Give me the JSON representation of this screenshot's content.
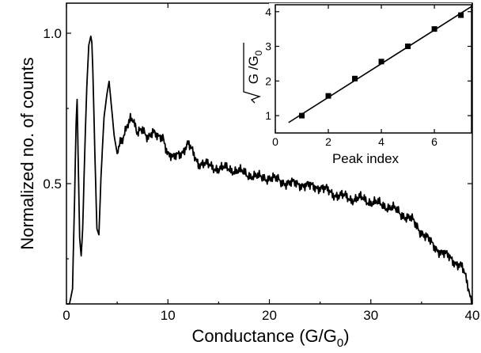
{
  "chart_data": [
    {
      "type": "line",
      "xlabel": "Conductance (G/G",
      "xlabel_sub": "0",
      "xlabel_close": ")",
      "ylabel": "Normalized no. of counts",
      "xlim": [
        0,
        40
      ],
      "ylim": [
        0.1,
        1.1
      ],
      "xticks": [
        0,
        10,
        20,
        30,
        40
      ],
      "xtick_labels": [
        "0",
        "10",
        "20",
        "30",
        "40"
      ],
      "yticks": [
        0.5,
        1.0
      ],
      "ytick_labels": [
        "0.5",
        "1.0"
      ],
      "grid": false,
      "series": [
        {
          "x": [
            0.0,
            0.3,
            0.6,
            0.8,
            0.95,
            1.05,
            1.15,
            1.3,
            1.45,
            1.6,
            1.8,
            2.0,
            2.2,
            2.4,
            2.5,
            2.6,
            2.8,
            3.0,
            3.2,
            3.4,
            3.7,
            4.0,
            4.2,
            4.4,
            4.7,
            5.0,
            5.3,
            5.6,
            6.0,
            6.3,
            6.6,
            7.0,
            7.5,
            8.0,
            8.5,
            9.0,
            9.5,
            10.0,
            10.5,
            11.0,
            11.5,
            12.0,
            12.5,
            13.0,
            14.0,
            15.0,
            16.0,
            17.0,
            18.0,
            19.0,
            20.0,
            21.0,
            22.0,
            23.0,
            24.0,
            25.0,
            26.0,
            27.0,
            28.0,
            29.0,
            30.0,
            31.0,
            32.0,
            33.0,
            34.0,
            35.0,
            36.0,
            37.0,
            38.0,
            39.0,
            39.5,
            40.0
          ],
          "y": [
            0.1,
            0.1,
            0.15,
            0.45,
            0.7,
            0.78,
            0.6,
            0.32,
            0.26,
            0.35,
            0.6,
            0.82,
            0.96,
            0.99,
            0.97,
            0.88,
            0.6,
            0.35,
            0.33,
            0.52,
            0.72,
            0.8,
            0.84,
            0.77,
            0.66,
            0.6,
            0.63,
            0.66,
            0.7,
            0.72,
            0.7,
            0.66,
            0.68,
            0.66,
            0.67,
            0.65,
            0.66,
            0.6,
            0.58,
            0.6,
            0.61,
            0.63,
            0.6,
            0.57,
            0.56,
            0.55,
            0.55,
            0.54,
            0.53,
            0.52,
            0.52,
            0.51,
            0.5,
            0.5,
            0.49,
            0.49,
            0.47,
            0.46,
            0.45,
            0.45,
            0.44,
            0.43,
            0.42,
            0.4,
            0.38,
            0.34,
            0.3,
            0.27,
            0.25,
            0.22,
            0.17,
            0.1
          ]
        }
      ]
    },
    {
      "type": "scatter",
      "xlabel": "Peak index",
      "ylabel_sqrt_arg": "G /G",
      "ylabel_sub": "0",
      "xlim": [
        0,
        7.4
      ],
      "ylim": [
        0.5,
        4.2
      ],
      "xticks": [
        0,
        2,
        4,
        6
      ],
      "xtick_labels": [
        "0",
        "2",
        "4",
        "6"
      ],
      "yticks": [
        1,
        2,
        3,
        4
      ],
      "ytick_labels": [
        "1",
        "2",
        "3",
        "4"
      ],
      "grid": false,
      "series": [
        {
          "x": [
            1,
            2,
            3,
            4,
            5,
            6,
            7
          ],
          "y": [
            1.0,
            1.57,
            2.07,
            2.56,
            3.0,
            3.5,
            3.9
          ]
        }
      ],
      "fit_line": {
        "x": [
          0.5,
          7.4
        ],
        "y": [
          0.8,
          4.15
        ]
      }
    }
  ]
}
